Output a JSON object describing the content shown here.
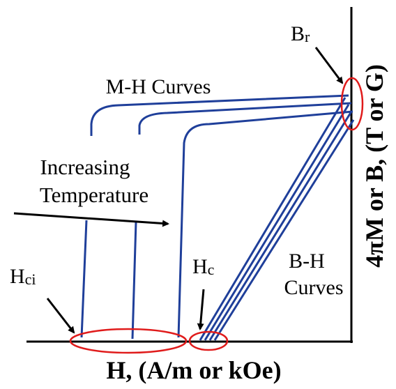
{
  "diagram": {
    "axes": {
      "x_label": "H, (A/m or kOe)",
      "y_label": "4πM or B, (T or G)"
    },
    "labels": {
      "mh_curves": "M-H Curves",
      "increasing_line1": "Increasing",
      "increasing_line2": "Temperature",
      "bh_line1": "B-H",
      "bh_line2": "Curves",
      "hci_main": "H",
      "hci_sub": "ci",
      "hc_main": "H",
      "hc_sub": "c",
      "br_main": "B",
      "br_sub": "r"
    },
    "colors": {
      "curve": "#1f3f9a",
      "highlight": "#e01b1b",
      "axis": "#000000"
    }
  }
}
